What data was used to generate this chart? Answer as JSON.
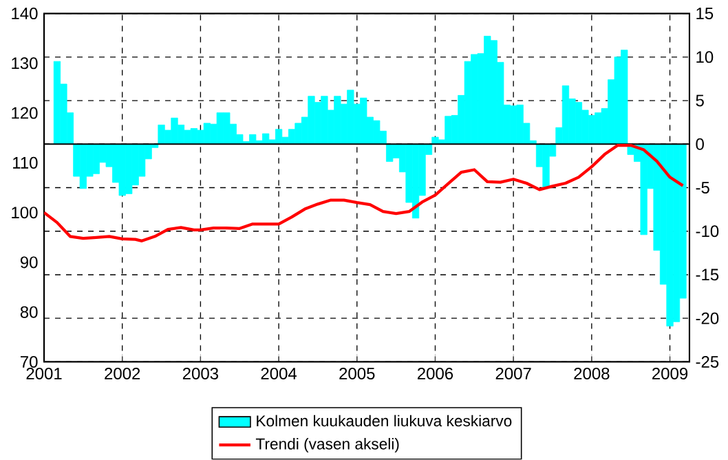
{
  "chart_data": {
    "type": "bar",
    "xlim": [
      "2001",
      "2009-04"
    ],
    "xticks": [
      "2001",
      "2002",
      "2003",
      "2004",
      "2005",
      "2006",
      "2007",
      "2008",
      "2009"
    ],
    "ylim": [
      70,
      140
    ],
    "yticks": [
      70,
      80,
      90,
      100,
      110,
      120,
      130,
      140
    ],
    "y2lim": [
      -25,
      15
    ],
    "y2ticks": [
      -25,
      -20,
      -15,
      -10,
      -5,
      0,
      5,
      10,
      15
    ],
    "grid": true,
    "legend": "bottom",
    "ref_lines": [
      {
        "axis": "y2",
        "value": 0,
        "color": "#000000"
      }
    ],
    "series": [
      {
        "name": "Kolmen kuukauden liukuva keskiarvo",
        "axis": "y2",
        "color": "#00ffff",
        "x": [
          "2001-03",
          "2001-04",
          "2001-05",
          "2001-06",
          "2001-07",
          "2001-08",
          "2001-09",
          "2001-10",
          "2001-11",
          "2001-12",
          "2002-01",
          "2002-02",
          "2002-03",
          "2002-04",
          "2002-05",
          "2002-06",
          "2002-07",
          "2002-08",
          "2002-09",
          "2002-10",
          "2002-11",
          "2002-12",
          "2003-01",
          "2003-02",
          "2003-03",
          "2003-04",
          "2003-05",
          "2003-06",
          "2003-07",
          "2003-08",
          "2003-09",
          "2003-10",
          "2003-11",
          "2003-12",
          "2004-01",
          "2004-02",
          "2004-03",
          "2004-04",
          "2004-05",
          "2004-06",
          "2004-07",
          "2004-08",
          "2004-09",
          "2004-10",
          "2004-11",
          "2004-12",
          "2005-01",
          "2005-02",
          "2005-03",
          "2005-04",
          "2005-05",
          "2005-06",
          "2005-07",
          "2005-08",
          "2005-09",
          "2005-10",
          "2005-11",
          "2005-12",
          "2006-01",
          "2006-02",
          "2006-03",
          "2006-04",
          "2006-05",
          "2006-06",
          "2006-07",
          "2006-08",
          "2006-09",
          "2006-10",
          "2006-11",
          "2006-12",
          "2007-01",
          "2007-02",
          "2007-03",
          "2007-04",
          "2007-05",
          "2007-06",
          "2007-07",
          "2007-08",
          "2007-09",
          "2007-10",
          "2007-11",
          "2007-12",
          "2008-01",
          "2008-02",
          "2008-03",
          "2008-04",
          "2008-05",
          "2008-06",
          "2008-07",
          "2008-08",
          "2008-09",
          "2008-10",
          "2008-11",
          "2008-12",
          "2009-01",
          "2009-02",
          "2009-03"
        ],
        "values": [
          9.5,
          6.9,
          3.6,
          -3.7,
          -5.1,
          -3.7,
          -3.4,
          -2.1,
          -2.6,
          -4.4,
          -5.9,
          -5.7,
          -4.7,
          -3.7,
          -1.7,
          -0.4,
          2.2,
          1.6,
          3.0,
          2.2,
          1.6,
          1.8,
          1.6,
          2.4,
          2.3,
          3.6,
          3.6,
          2.3,
          1.1,
          0.3,
          1.1,
          0.4,
          1.2,
          0.5,
          1.7,
          0.8,
          1.7,
          2.4,
          3.1,
          5.5,
          4.8,
          5.5,
          3.9,
          5.5,
          4.6,
          6.2,
          4.6,
          5.3,
          3.1,
          2.7,
          1.5,
          -2.0,
          -1.6,
          -3.2,
          -6.7,
          -8.5,
          -5.9,
          -1.2,
          0.8,
          0.5,
          3.2,
          3.3,
          5.6,
          9.5,
          10.3,
          10.4,
          12.4,
          11.9,
          9.4,
          4.5,
          4.4,
          4.5,
          2.4,
          0.4,
          -2.6,
          -4.9,
          -1.4,
          1.9,
          6.7,
          5.2,
          4.8,
          3.9,
          3.3,
          3.6,
          4.1,
          7.4,
          10.0,
          10.8,
          -1.2,
          -2.0,
          -10.4,
          -5.1,
          -12.2,
          -16.1,
          -20.9,
          -20.4,
          -17.7
        ]
      },
      {
        "name": "Trendi (vasen akseli)",
        "type": "line",
        "color": "#ff0000",
        "x": [
          "2001-01",
          "2001-03",
          "2001-05",
          "2001-07",
          "2001-09",
          "2001-11",
          "2002-01",
          "2002-03",
          "2002-04",
          "2002-06",
          "2002-08",
          "2002-10",
          "2002-12",
          "2003-01",
          "2003-03",
          "2003-05",
          "2003-07",
          "2003-09",
          "2003-11",
          "2004-01",
          "2004-03",
          "2004-05",
          "2004-07",
          "2004-09",
          "2004-11",
          "2005-01",
          "2005-03",
          "2005-05",
          "2005-07",
          "2005-09",
          "2005-11",
          "2006-01",
          "2006-03",
          "2006-05",
          "2006-07",
          "2006-09",
          "2006-11",
          "2007-01",
          "2007-03",
          "2007-05",
          "2007-07",
          "2007-09",
          "2007-11",
          "2008-01",
          "2008-03",
          "2008-05",
          "2008-07",
          "2008-09",
          "2008-11",
          "2009-01",
          "2009-03"
        ],
        "values": [
          100,
          98,
          95.2,
          94.8,
          95.0,
          95.2,
          94.7,
          94.6,
          94.3,
          95.2,
          96.6,
          97.0,
          96.5,
          96.5,
          96.9,
          96.9,
          96.8,
          97.7,
          97.7,
          97.7,
          99.1,
          100.7,
          101.7,
          102.5,
          102.5,
          102.0,
          101.6,
          100.2,
          99.8,
          100.2,
          102.1,
          103.5,
          105.8,
          108.1,
          108.6,
          106.2,
          106.1,
          106.7,
          105.9,
          104.6,
          105.3,
          105.9,
          107.1,
          109.2,
          111.7,
          113.5,
          113.5,
          112.6,
          110.3,
          107.1,
          105.4
        ]
      }
    ]
  }
}
